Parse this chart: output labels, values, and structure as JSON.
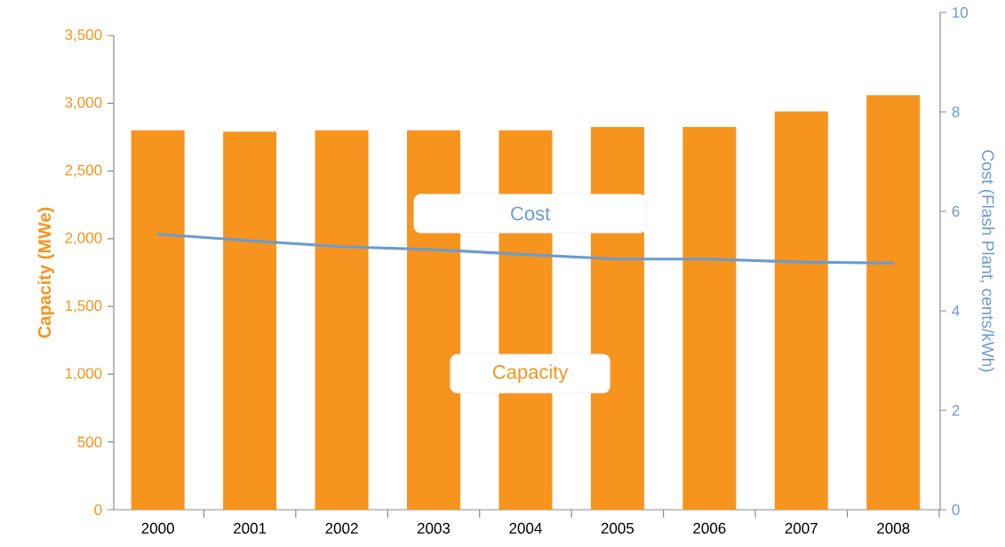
{
  "chart_data": {
    "type": "bar",
    "categories": [
      "2000",
      "2001",
      "2002",
      "2003",
      "2004",
      "2005",
      "2006",
      "2007",
      "2008"
    ],
    "ylabel": "Capacity (MWe)",
    "y2label": "Cost  (Flash Plant, cents/kWh)",
    "ylim": [
      0,
      3500
    ],
    "yticks": [
      0,
      500,
      {
        "value": 1000,
        "label": "1,000"
      },
      {
        "value": 1500,
        "label": "1,500"
      },
      {
        "value": 2000,
        "label": "2,000"
      },
      {
        "value": 2500,
        "label": "2,500"
      },
      {
        "value": 3000,
        "label": "3,000"
      },
      {
        "value": 3500,
        "label": "3,500"
      }
    ],
    "y2lim": [
      0,
      10
    ],
    "y2ticks": [
      0,
      2,
      4,
      6,
      8,
      10
    ],
    "series": [
      {
        "name": "Capacity",
        "color": "#f7941d",
        "values": [
          2800,
          2790,
          2800,
          2800,
          2800,
          2825,
          2825,
          2940,
          3060
        ]
      },
      {
        "name": "Cost",
        "type": "line",
        "axis": "y2",
        "color": "#6b9bcf",
        "values": [
          5.54,
          5.41,
          5.29,
          5.23,
          5.13,
          5.04,
          5.04,
          4.98,
          4.96
        ]
      }
    ]
  }
}
